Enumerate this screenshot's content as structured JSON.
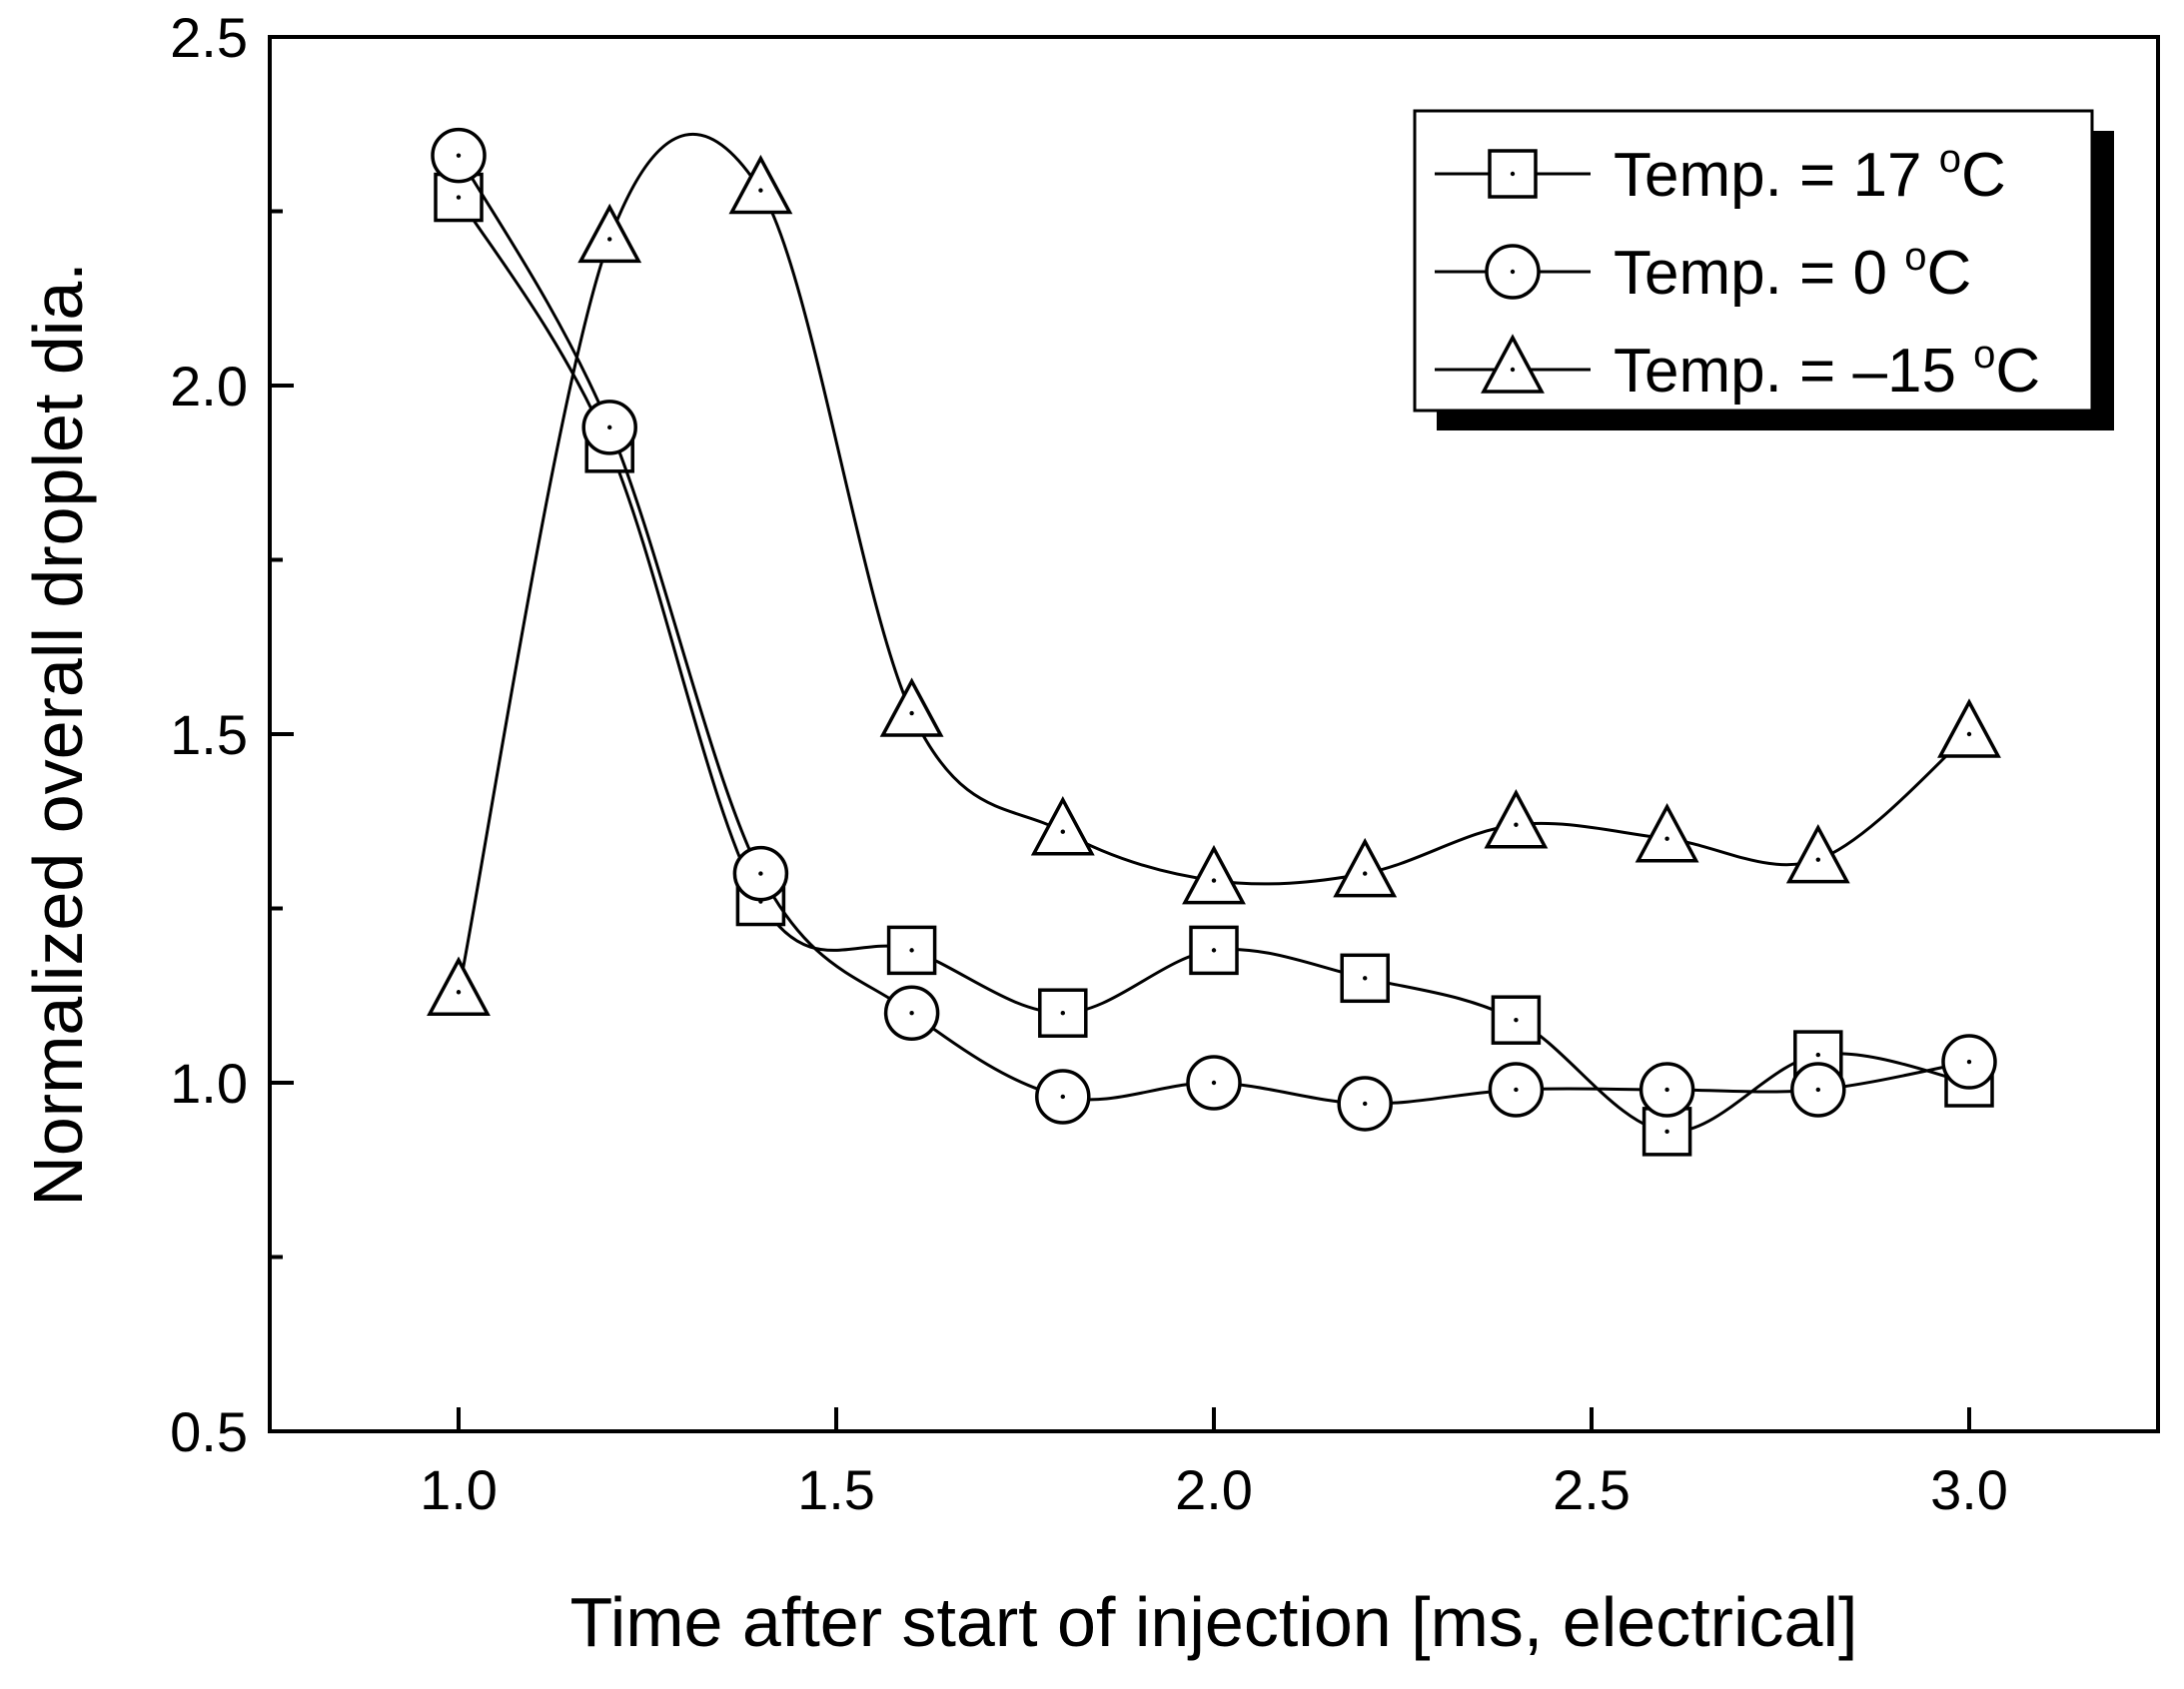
{
  "chart_data": {
    "type": "line",
    "title": "",
    "xlabel": "Time after start of injection [ms, electrical]",
    "ylabel": "Normalized overall droplet dia.",
    "xlim": [
      0.75,
      3.25
    ],
    "ylim": [
      0.5,
      2.5
    ],
    "x_ticks": [
      "1.0",
      "1.5",
      "2.0",
      "2.5",
      "3.0"
    ],
    "y_ticks": [
      "0.5",
      "1.0",
      "1.5",
      "2.0",
      "2.5"
    ],
    "grid": false,
    "legend_position": "top-right",
    "x": [
      1.0,
      1.2,
      1.4,
      1.6,
      1.8,
      2.0,
      2.2,
      2.4,
      2.6,
      2.8,
      3.0
    ],
    "series": [
      {
        "name": "Temp. = 17 °C",
        "label_prefix": "Temp. = 17 ",
        "unit": "C",
        "marker": "square",
        "values": [
          2.27,
          1.91,
          1.26,
          1.19,
          1.1,
          1.19,
          1.15,
          1.09,
          0.93,
          1.04,
          1.0
        ]
      },
      {
        "name": "Temp. = 0 °C",
        "label_prefix": "Temp. = 0 ",
        "unit": "C",
        "marker": "circle",
        "values": [
          2.33,
          1.94,
          1.3,
          1.1,
          0.98,
          1.0,
          0.97,
          0.99,
          0.99,
          0.99,
          1.03
        ]
      },
      {
        "name": "Temp. = –15 °C",
        "label_prefix": "Temp. = –15 ",
        "unit": "C",
        "marker": "triangle",
        "values": [
          1.13,
          2.21,
          2.28,
          1.53,
          1.36,
          1.29,
          1.3,
          1.37,
          1.35,
          1.32,
          1.5
        ]
      }
    ]
  }
}
